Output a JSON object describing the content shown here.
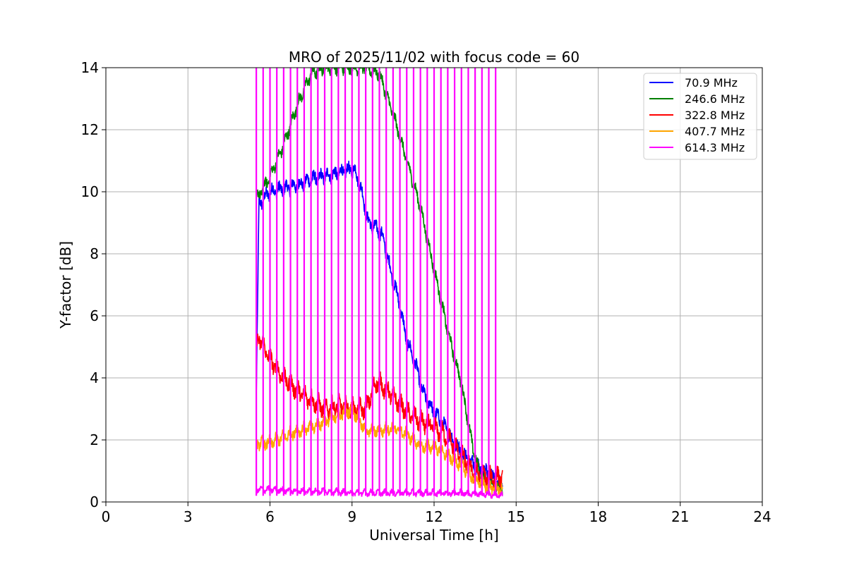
{
  "chart_data": {
    "type": "line",
    "title": "MRO of 2025/11/02 with focus code = 60",
    "xlabel": "Universal Time [h]",
    "ylabel": "Y-factor [dB]",
    "xlim": [
      0,
      24
    ],
    "ylim": [
      0,
      14
    ],
    "xticks": [
      0,
      3,
      6,
      9,
      12,
      15,
      18,
      21,
      24
    ],
    "yticks": [
      0,
      2,
      4,
      6,
      8,
      10,
      12,
      14
    ],
    "grid": true,
    "legend_position": "top-right",
    "series": [
      {
        "name": "70.9 MHz",
        "legend_label": " 70.9 MHz",
        "color": "#0000ff",
        "noise": 0.35,
        "x": [
          5.5,
          5.6,
          6.0,
          6.5,
          7.0,
          7.5,
          8.0,
          8.5,
          8.9,
          9.1,
          9.3,
          9.6,
          9.9,
          10.1,
          10.4,
          10.7,
          11.0,
          11.3,
          11.6,
          12.0,
          12.4,
          12.8,
          13.2,
          13.6,
          14.0,
          14.5
        ],
        "y": [
          3.5,
          9.6,
          10.0,
          10.1,
          10.2,
          10.4,
          10.5,
          10.6,
          10.7,
          10.7,
          10.2,
          9.0,
          8.8,
          8.6,
          7.5,
          6.5,
          5.2,
          4.5,
          3.5,
          2.9,
          2.4,
          1.8,
          1.4,
          1.1,
          0.9,
          0.5
        ]
      },
      {
        "name": "246.6 MHz",
        "legend_label": "246.6 MHz",
        "color": "#008000",
        "noise": 0.3,
        "x": [
          5.5,
          5.6,
          6.0,
          6.5,
          7.0,
          7.5,
          8.0,
          8.5,
          9.0,
          9.5,
          10.0,
          10.5,
          11.0,
          11.5,
          12.0,
          12.5,
          13.0,
          13.4,
          13.7,
          14.0,
          14.3,
          14.5
        ],
        "y": [
          9.8,
          9.9,
          10.5,
          11.5,
          12.8,
          13.8,
          14.0,
          14.0,
          14.0,
          14.0,
          13.8,
          12.5,
          11.0,
          9.5,
          7.5,
          5.5,
          3.8,
          1.8,
          0.8,
          0.6,
          0.5,
          0.4
        ]
      },
      {
        "name": "322.8 MHz",
        "legend_label": "322.8 MHz",
        "color": "#ff0000",
        "noise": 0.45,
        "x": [
          5.5,
          5.6,
          6.0,
          6.5,
          7.0,
          7.5,
          8.0,
          8.5,
          9.0,
          9.5,
          9.9,
          10.3,
          10.7,
          11.0,
          11.5,
          12.0,
          12.5,
          13.0,
          13.5,
          14.0,
          14.5
        ],
        "y": [
          5.0,
          5.3,
          4.6,
          4.0,
          3.6,
          3.3,
          3.0,
          3.1,
          3.0,
          3.0,
          3.9,
          3.6,
          3.2,
          2.9,
          2.6,
          2.4,
          2.1,
          1.5,
          0.9,
          0.8,
          0.8
        ]
      },
      {
        "name": "407.7 MHz",
        "legend_label": "407.7 MHz",
        "color": "#ffa500",
        "noise": 0.3,
        "x": [
          5.5,
          5.6,
          6.0,
          6.5,
          7.0,
          7.5,
          8.0,
          8.5,
          9.0,
          9.5,
          10.0,
          10.5,
          11.0,
          11.5,
          12.0,
          12.5,
          13.0,
          13.5,
          14.0,
          14.5
        ],
        "y": [
          1.9,
          1.9,
          1.9,
          2.1,
          2.3,
          2.4,
          2.6,
          2.8,
          3.0,
          2.3,
          2.3,
          2.4,
          2.2,
          1.8,
          1.8,
          1.5,
          1.2,
          0.7,
          0.5,
          0.4
        ]
      },
      {
        "name": "614.3 MHz",
        "legend_label": "614.3 MHz",
        "color": "#ff00ff",
        "noise": 0.15,
        "spike_times": [
          5.5,
          5.75,
          6.0,
          6.25,
          6.5,
          6.75,
          7.0,
          7.25,
          7.5,
          7.75,
          8.0,
          8.25,
          8.5,
          8.75,
          9.0,
          9.25,
          9.5,
          9.75,
          10.0,
          10.25,
          10.5,
          10.75,
          11.0,
          11.25,
          11.5,
          11.75,
          12.0,
          12.25,
          12.5,
          12.75,
          13.0,
          13.25,
          13.5,
          13.75,
          14.0,
          14.25
        ],
        "x": [
          5.5,
          6.0,
          7.0,
          8.0,
          9.0,
          10.0,
          11.0,
          12.0,
          13.0,
          14.0,
          14.5
        ],
        "y": [
          0.4,
          0.4,
          0.35,
          0.35,
          0.3,
          0.3,
          0.3,
          0.3,
          0.3,
          0.25,
          0.2
        ]
      }
    ]
  }
}
